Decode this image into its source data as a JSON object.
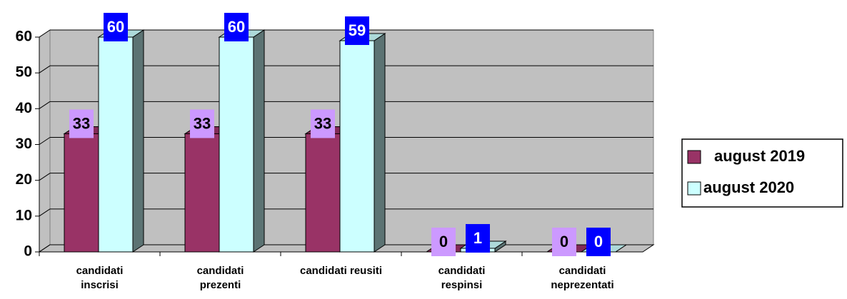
{
  "chart_data": {
    "type": "bar3d",
    "categories": [
      "candidati\ninscrisi",
      "candidati\nprezenti",
      "candidati reusiti",
      "candidati\nrespinsi",
      "candidati\nneprezentati"
    ],
    "series": [
      {
        "name": "august 2019",
        "color": "#993366",
        "label_color": "#cc99ff",
        "label_text_color": "#000000",
        "values": [
          33,
          33,
          33,
          0,
          0
        ]
      },
      {
        "name": "august 2020",
        "color": "#ccffff",
        "label_color": "#0000ff",
        "label_text_color": "#ffffff",
        "values": [
          60,
          60,
          59,
          1,
          0
        ]
      }
    ],
    "ylim": [
      0,
      60
    ],
    "yticks": [
      0,
      10,
      20,
      30,
      40,
      50,
      60
    ],
    "grid": true,
    "legend": "right"
  }
}
